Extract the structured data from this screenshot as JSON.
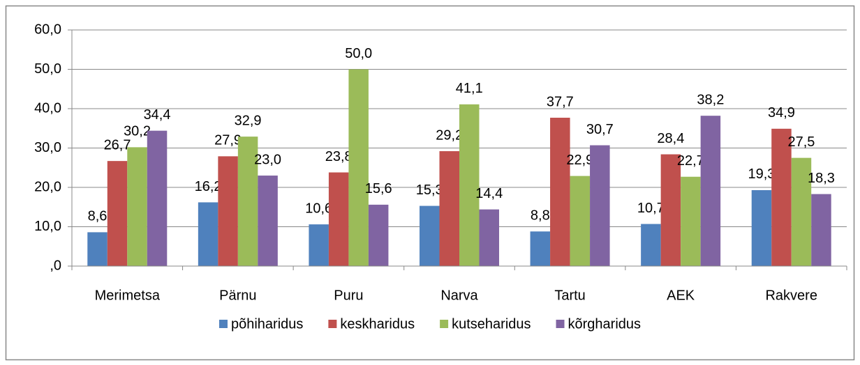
{
  "chart_data": {
    "type": "bar",
    "categories": [
      "Merimetsa",
      "Pärnu",
      "Puru",
      "Narva",
      "Tartu",
      "AEK",
      "Rakvere"
    ],
    "series": [
      {
        "name": "põhiharidus",
        "color": "#4f81bd",
        "values": [
          8.6,
          16.2,
          10.6,
          15.3,
          8.8,
          10.7,
          19.3
        ],
        "value_labels": [
          "8,6",
          "16,2",
          "10,6",
          "15,3",
          "8,8",
          "10,7",
          "19,3"
        ]
      },
      {
        "name": "keskharidus",
        "color": "#c0504d",
        "values": [
          26.7,
          27.9,
          23.8,
          29.2,
          37.7,
          28.4,
          34.9
        ],
        "value_labels": [
          "26,7",
          "27,9",
          "23,8",
          "29,2",
          "37,7",
          "28,4",
          "34,9"
        ]
      },
      {
        "name": "kutseharidus",
        "color": "#9bbb59",
        "values": [
          30.2,
          32.9,
          50.0,
          41.1,
          22.9,
          22.7,
          27.5
        ],
        "value_labels": [
          "30,2",
          "32,9",
          "50,0",
          "41,1",
          "22,9",
          "22,7",
          "27,5"
        ]
      },
      {
        "name": "kõrgharidus",
        "color": "#8064a2",
        "values": [
          34.4,
          23.0,
          15.6,
          14.4,
          30.7,
          38.2,
          18.3
        ],
        "value_labels": [
          "34,4",
          "23,0",
          "15,6",
          "14,4",
          "30,7",
          "38,2",
          "18,3"
        ]
      }
    ],
    "ylim": [
      0,
      60
    ],
    "yticks": [
      {
        "value": 0,
        "label": ",0"
      },
      {
        "value": 10,
        "label": "10,0"
      },
      {
        "value": 20,
        "label": "20,0"
      },
      {
        "value": 30,
        "label": "30,0"
      },
      {
        "value": 40,
        "label": "40,0"
      },
      {
        "value": 50,
        "label": "50,0"
      },
      {
        "value": 60,
        "label": "60,0"
      }
    ],
    "grid": true,
    "legend": "bottom"
  }
}
